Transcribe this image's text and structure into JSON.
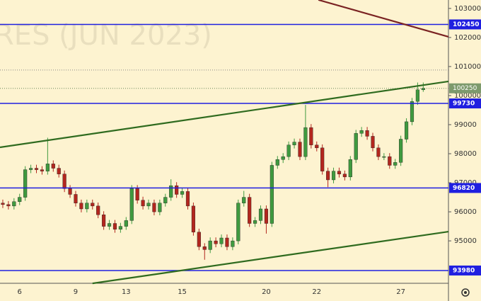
{
  "chart_data": {
    "type": "candlestick",
    "watermark": "RES (JUN 2023)",
    "categories": [
      null,
      null,
      null,
      "6",
      null,
      null,
      null,
      null,
      null,
      null,
      null,
      null,
      null,
      "9",
      null,
      null,
      null,
      null,
      null,
      null,
      null,
      null,
      "13",
      null,
      null,
      null,
      null,
      null,
      null,
      null,
      null,
      null,
      "15",
      null,
      null,
      null,
      null,
      null,
      null,
      null,
      null,
      null,
      null,
      null,
      null,
      null,
      null,
      "20",
      null,
      null,
      null,
      null,
      null,
      null,
      null,
      null,
      "22",
      null,
      null,
      null,
      null,
      null,
      null,
      null,
      null,
      null,
      null,
      null,
      null,
      null,
      null,
      "27",
      null,
      null,
      null,
      null
    ],
    "open": [
      96300,
      96250,
      96200,
      96350,
      96500,
      97450,
      97500,
      97450,
      97400,
      97650,
      97500,
      97300,
      96800,
      96600,
      96300,
      96100,
      96300,
      96200,
      95900,
      95500,
      95600,
      95400,
      95500,
      95700,
      96800,
      96400,
      96200,
      96300,
      96000,
      96300,
      96500,
      96900,
      96600,
      96700,
      96200,
      95300,
      94800,
      94700,
      95000,
      94900,
      95100,
      94800,
      95000,
      96300,
      96500,
      95600,
      95700,
      96100,
      95600,
      97600,
      97800,
      97900,
      98300,
      98400,
      97900,
      98900,
      98300,
      98200,
      97400,
      97100,
      97400,
      97300,
      97200,
      97800,
      98700,
      98800,
      98600,
      98200,
      97900,
      97900,
      97600,
      97700,
      98500,
      99100,
      99800,
      100200
    ],
    "high": [
      96420,
      96370,
      96470,
      96620,
      97570,
      97620,
      97620,
      97570,
      98550,
      97770,
      97620,
      97420,
      96920,
      96720,
      96420,
      96420,
      96420,
      96320,
      96020,
      95720,
      95720,
      95620,
      95820,
      96920,
      96920,
      96520,
      96420,
      96420,
      96420,
      96620,
      97120,
      97020,
      96820,
      96820,
      96320,
      95420,
      94920,
      95120,
      95120,
      95220,
      95220,
      95120,
      96420,
      96720,
      96620,
      95820,
      96220,
      96220,
      97720,
      97920,
      98020,
      98420,
      98520,
      98520,
      99680,
      99020,
      98420,
      98320,
      97520,
      97520,
      97520,
      97420,
      97920,
      98820,
      98920,
      98920,
      98720,
      98320,
      98020,
      98020,
      97820,
      98620,
      99220,
      99920,
      100450,
      100450
    ],
    "low": [
      96130,
      96080,
      96080,
      96230,
      96380,
      97330,
      97330,
      97280,
      97280,
      97380,
      97180,
      96680,
      96480,
      96180,
      95980,
      95980,
      96080,
      95780,
      95380,
      95380,
      95280,
      95280,
      95380,
      95580,
      96280,
      96080,
      96080,
      95880,
      95880,
      96180,
      96380,
      96480,
      96480,
      96080,
      95180,
      94680,
      94350,
      94580,
      94780,
      94780,
      94680,
      94680,
      94880,
      96180,
      95480,
      95480,
      95580,
      95250,
      95480,
      97480,
      97680,
      97780,
      98180,
      97780,
      97780,
      98180,
      98080,
      97280,
      96850,
      96980,
      97180,
      97080,
      97080,
      97680,
      98580,
      98480,
      98080,
      97780,
      97780,
      97480,
      97480,
      97580,
      98380,
      98980,
      99680,
      100130
    ],
    "close": [
      96250,
      96200,
      96350,
      96500,
      97450,
      97500,
      97450,
      97400,
      97650,
      97500,
      97300,
      96800,
      96600,
      96300,
      96100,
      96300,
      96200,
      95900,
      95500,
      95600,
      95400,
      95500,
      95700,
      96800,
      96400,
      96200,
      96300,
      96000,
      96300,
      96500,
      96900,
      96600,
      96700,
      96200,
      95300,
      94800,
      94700,
      95000,
      94900,
      95100,
      94800,
      95000,
      96300,
      96500,
      95600,
      95700,
      96100,
      95600,
      97600,
      97800,
      97900,
      98300,
      98400,
      97900,
      98900,
      98300,
      98200,
      97400,
      97100,
      97400,
      97300,
      97200,
      97800,
      98700,
      98800,
      98600,
      98200,
      97900,
      97900,
      97600,
      97700,
      98500,
      99100,
      99800,
      100200,
      100250
    ],
    "up_color": "#3f9a3f",
    "down_color": "#b3261e",
    "xlim": [
      -0.5,
      79.5
    ],
    "ylim": [
      93540,
      103290
    ],
    "yticks": [
      95000,
      96000,
      97000,
      98000,
      99000,
      100000,
      101000,
      102000,
      103000
    ],
    "levels": {
      "color": "#1f1fe0",
      "values": [
        102450,
        99730,
        96820,
        93980
      ]
    },
    "dotted_levels": [
      100880
    ],
    "last_price": {
      "value": 100250,
      "color": "#7d9a6c"
    },
    "trend_lines": [
      {
        "color": "#2f6b1f",
        "x": [
          -0.5,
          79.5
        ],
        "y": [
          98220,
          100488
        ]
      },
      {
        "color": "#2f6b1f",
        "x": [
          16,
          79.5
        ],
        "y": [
          93537,
          95318
        ]
      },
      {
        "color": "#7a2222",
        "x": [
          56.3,
          79.5
        ],
        "y": [
          103293,
          102025
        ]
      }
    ]
  }
}
